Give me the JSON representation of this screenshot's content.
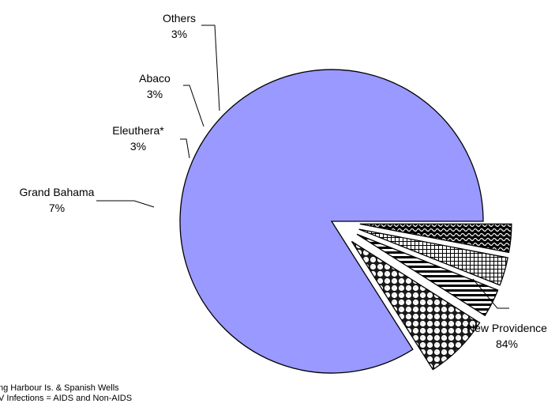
{
  "chart_data": {
    "type": "pie",
    "title": "",
    "start_angle_deg": 0,
    "direction": "counterclockwise",
    "slices": [
      {
        "label": "New Providence",
        "value": 84,
        "value_label": "84%",
        "color": "#9999ff",
        "pattern": "solid",
        "exploded": false
      },
      {
        "label": "Grand Bahama",
        "value": 7,
        "value_label": "7%",
        "color": "#ffffff",
        "pattern": "dots",
        "exploded": true
      },
      {
        "label": "Eleuthera*",
        "value": 3,
        "value_label": "3%",
        "color": "#ffffff",
        "pattern": "horizontal-stripes",
        "exploded": true
      },
      {
        "label": "Abaco",
        "value": 3,
        "value_label": "3%",
        "color": "#ffffff",
        "pattern": "grid",
        "exploded": true
      },
      {
        "label": "Others",
        "value": 3,
        "value_label": "3%",
        "color": "#ffffff",
        "pattern": "waves",
        "exploded": true
      }
    ],
    "legend": "none"
  },
  "footnotes": [
    "ng Harbour Is. & Spanish Wells",
    "V Infections = AIDS and Non-AIDS"
  ]
}
